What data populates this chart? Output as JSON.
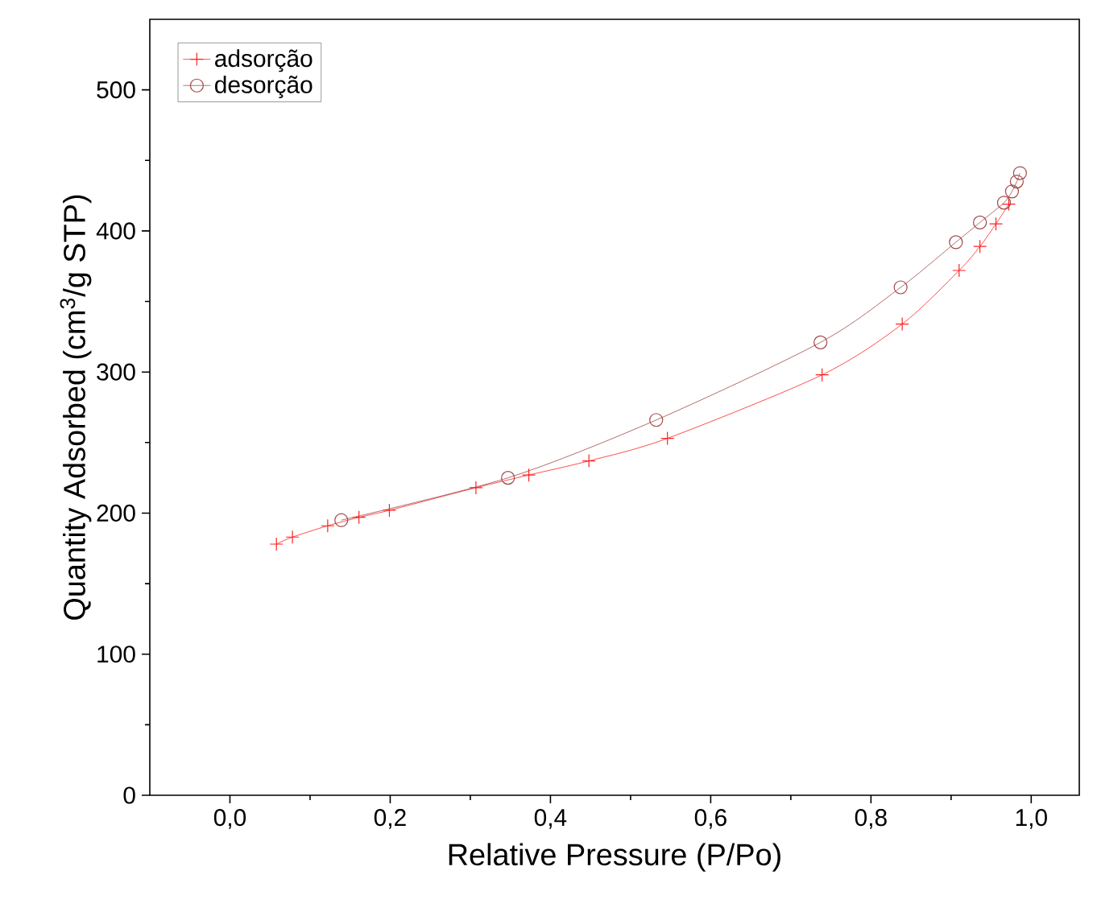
{
  "chart_data": {
    "type": "line",
    "xlabel": "Relative Pressure (P/Po)",
    "ylabel": "Quantity Adsorbed (cm$^{3}$/g STP)",
    "xlim": [
      -0.1,
      1.06
    ],
    "ylim": [
      0,
      550
    ],
    "xticks": [
      {
        "value": 0,
        "label": "0,0"
      },
      {
        "value": 0.2,
        "label": "0,2"
      },
      {
        "value": 0.4,
        "label": "0,4"
      },
      {
        "value": 0.6,
        "label": "0,6"
      },
      {
        "value": 0.8,
        "label": "0,8"
      },
      {
        "value": 1.0,
        "label": "1,0"
      }
    ],
    "yticks": [
      0,
      100,
      200,
      300,
      400,
      500
    ],
    "legend": "top left",
    "grid": false,
    "line_style": "solid",
    "series": [
      {
        "name": "adsorção",
        "color": "#ff2020",
        "marker": "cross",
        "x": [
          0.058,
          0.078,
          0.122,
          0.161,
          0.199,
          0.307,
          0.373,
          0.448,
          0.546,
          0.739,
          0.839,
          0.91,
          0.936,
          0.956,
          0.972
        ],
        "values": [
          178,
          183,
          191,
          197,
          202,
          218,
          227,
          237,
          253,
          298,
          334,
          372,
          389,
          405,
          419
        ]
      },
      {
        "name": "desorção",
        "color": "#a04848",
        "marker": "circle",
        "x": [
          0.986,
          0.982,
          0.976,
          0.966,
          0.936,
          0.906,
          0.837,
          0.737,
          0.532,
          0.347,
          0.139
        ],
        "values": [
          441,
          435,
          428,
          420,
          406,
          392,
          360,
          321,
          266,
          225,
          195
        ]
      }
    ]
  }
}
